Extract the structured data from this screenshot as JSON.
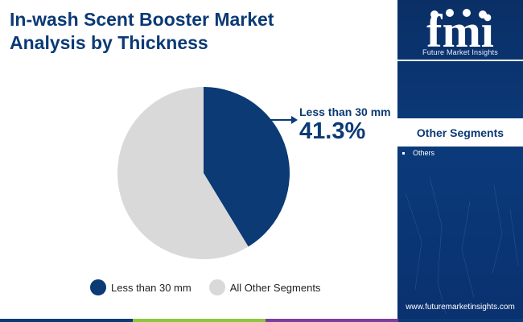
{
  "title": "In-wash Scent Booster Market\nAnalysis by Thickness",
  "chart_data": {
    "type": "pie",
    "title": "In-wash Scent Booster Market Analysis by Thickness",
    "slices": [
      {
        "label": "Less than 30 mm",
        "value": 41.3,
        "color": "#0b3a75"
      },
      {
        "label": "All Other Segments",
        "value": 58.7,
        "color": "#d9d9d9"
      }
    ],
    "legend_position": "bottom",
    "callout": {
      "label": "Less than 30 mm",
      "value_text": "41.3%"
    }
  },
  "legend": [
    {
      "label": "Less than 30 mm",
      "color": "#0b3a75"
    },
    {
      "label": "All Other Segments",
      "color": "#d9d9d9"
    }
  ],
  "sidebar": {
    "logo_text": "fmi",
    "logo_subtitle": "Future Market Insights",
    "other_segments_title": "Other Segments",
    "other_segments": [
      "Others"
    ],
    "url": "www.futuremarketinsights.com"
  },
  "footer_colors": [
    "#0b3a75",
    "#8dc63f",
    "#7b3f98",
    "#0b3a75"
  ]
}
